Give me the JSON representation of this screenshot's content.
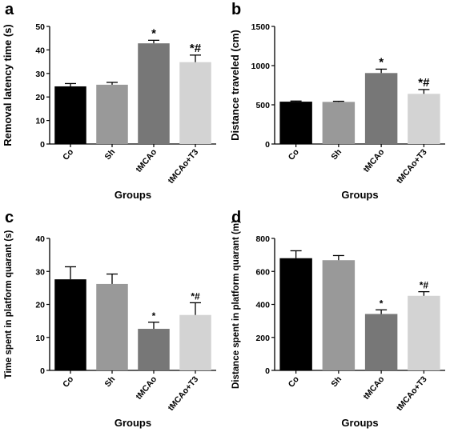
{
  "chart_data": [
    {
      "panel": "a",
      "type": "bar",
      "categories": [
        "Co",
        "Sh",
        "tMCAo",
        "tMCAo+T3"
      ],
      "values": [
        24.5,
        25.2,
        42.8,
        34.8
      ],
      "errors": [
        1.2,
        1.0,
        1.3,
        3.0
      ],
      "annotations": [
        "",
        "",
        "*",
        "*#"
      ],
      "colors": [
        "#000000",
        "#999999",
        "#777777",
        "#d3d3d3"
      ],
      "xlabel": "Groups",
      "ylabel": "Removal latency time (s)",
      "ylim": [
        0,
        50
      ],
      "yticks": [
        0,
        10,
        20,
        30,
        40,
        50
      ]
    },
    {
      "panel": "b",
      "type": "bar",
      "categories": [
        "Co",
        "Sh",
        "tMCAo",
        "tMCAo+T3"
      ],
      "values": [
        540,
        537,
        905,
        640
      ],
      "errors": [
        8,
        8,
        50,
        55
      ],
      "annotations": [
        "",
        "",
        "*",
        "*#"
      ],
      "colors": [
        "#000000",
        "#999999",
        "#777777",
        "#d3d3d3"
      ],
      "xlabel": "Groups",
      "ylabel": "Distance traveled (cm)",
      "ylim": [
        0,
        1500
      ],
      "yticks": [
        0,
        500,
        1000,
        1500
      ]
    },
    {
      "panel": "c",
      "type": "bar",
      "categories": [
        "Co",
        "Sh",
        "tMCAo",
        "tMCAo+T3"
      ],
      "values": [
        27.6,
        26.2,
        12.6,
        16.8
      ],
      "errors": [
        3.8,
        3.0,
        2.0,
        3.7
      ],
      "annotations": [
        "",
        "",
        "*",
        "*#"
      ],
      "colors": [
        "#000000",
        "#999999",
        "#777777",
        "#d3d3d3"
      ],
      "xlabel": "Groups",
      "ylabel": "Time spent in platform quarant (s)",
      "ylim": [
        0,
        40
      ],
      "yticks": [
        0,
        10,
        20,
        30,
        40
      ]
    },
    {
      "panel": "d",
      "type": "bar",
      "categories": [
        "Co",
        "Sh",
        "tMCAo",
        "tMCAo+T3"
      ],
      "values": [
        680,
        668,
        342,
        452
      ],
      "errors": [
        45,
        28,
        25,
        25
      ],
      "annotations": [
        "",
        "",
        "*",
        "*#"
      ],
      "colors": [
        "#000000",
        "#999999",
        "#777777",
        "#d3d3d3"
      ],
      "xlabel": "Groups",
      "ylabel": "Distance spent in platform quarant (m)",
      "ylim": [
        0,
        800
      ],
      "yticks": [
        0,
        200,
        400,
        600,
        800
      ]
    }
  ]
}
